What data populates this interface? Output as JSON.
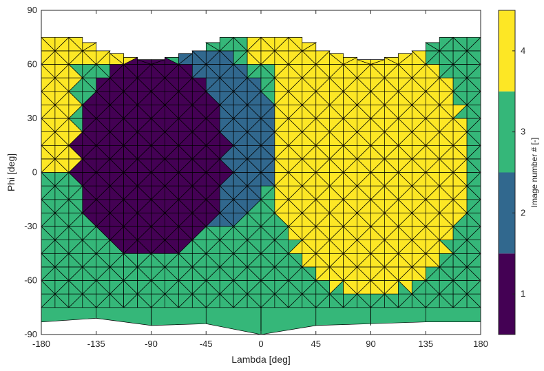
{
  "chart_data": {
    "type": "heatmap",
    "title": "",
    "xlabel": "Lambda [deg]",
    "ylabel": "Phi [deg]",
    "xlim": [
      -180,
      180
    ],
    "ylim": [
      -90,
      90
    ],
    "xticks": [
      -180,
      -135,
      -90,
      -45,
      0,
      45,
      90,
      135,
      180
    ],
    "yticks": [
      -90,
      -60,
      -30,
      0,
      30,
      60,
      90
    ],
    "xtick_labels": [
      "-180",
      "-135",
      "-90",
      "-45",
      "0",
      "45",
      "90",
      "135",
      "180"
    ],
    "ytick_labels": [
      "-90",
      "-60",
      "-30",
      "0",
      "30",
      "60",
      "90"
    ],
    "grid": false,
    "mesh": "triangulated spherical mesh, black edges",
    "colorbar": {
      "label": "Image number # [-]",
      "range": [
        0.5,
        4.5
      ],
      "ticks": [
        1,
        2,
        3,
        4
      ],
      "tick_labels": [
        "1",
        "2",
        "3",
        "4"
      ],
      "colors": [
        "#440154",
        "#31688e",
        "#35b779",
        "#fde725"
      ]
    },
    "series": [
      {
        "value": 1,
        "region": {
          "lambda_center": -90,
          "phi_center": 10,
          "lambda_halfwidth": 62,
          "phi_top": 65,
          "phi_bottom": -47
        }
      },
      {
        "value": 2,
        "region": {
          "lambda_center": -42,
          "phi_center": 20,
          "lambda_halfwidth": 55,
          "phi_top": 68,
          "phi_bottom": -32
        }
      },
      {
        "value": 4,
        "region": {
          "lambda_center": 90,
          "phi_center": 5,
          "lambda_halfwidth": 80,
          "phi_top": 80,
          "phi_bottom": -68
        }
      },
      {
        "value": 3,
        "region": "remaining southern and western cells"
      }
    ]
  }
}
